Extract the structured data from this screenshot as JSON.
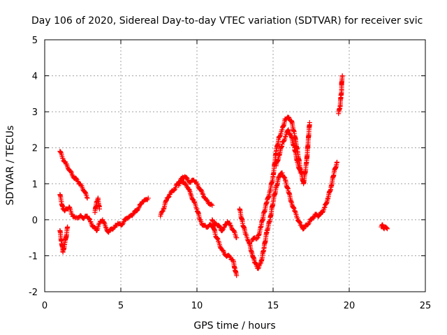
{
  "chart_data": {
    "type": "scatter",
    "title": "Day 106 of 2020, Sidereal Day-to-day VTEC variation (SDTVAR) for receiver svic",
    "xlabel": "GPS time / hours",
    "ylabel": "SDTVAR / TECUs",
    "xlim": [
      0,
      25
    ],
    "ylim": [
      -2,
      5
    ],
    "xticks": [
      0,
      5,
      10,
      15,
      20,
      25
    ],
    "yticks": [
      -2,
      -1,
      0,
      1,
      2,
      3,
      4,
      5
    ],
    "grid": true,
    "marker": "plus",
    "color": "#ff0000",
    "series": [
      {
        "name": "SDTVAR",
        "segments": [
          {
            "x": [
              1.0,
              1.2,
              1.4,
              1.6,
              1.8,
              2.0,
              2.2,
              2.4,
              2.6,
              2.8
            ],
            "y": [
              1.9,
              1.7,
              1.55,
              1.4,
              1.25,
              1.15,
              1.05,
              0.95,
              0.8,
              0.6
            ]
          },
          {
            "x": [
              1.0,
              1.1,
              1.2,
              1.3,
              1.4,
              1.6,
              1.8,
              2.0,
              2.2,
              2.4,
              2.6,
              2.8,
              3.0,
              3.2,
              3.4,
              3.6,
              3.8,
              4.0,
              4.2,
              4.4,
              4.6,
              4.8,
              5.0,
              5.2,
              5.4,
              5.6,
              5.8,
              6.0,
              6.2,
              6.4,
              6.6,
              6.8
            ],
            "y": [
              0.7,
              0.5,
              0.3,
              0.25,
              0.3,
              0.35,
              0.15,
              0.05,
              0.05,
              0.1,
              0.05,
              0.1,
              -0.05,
              -0.2,
              -0.3,
              -0.1,
              0.0,
              -0.2,
              -0.35,
              -0.25,
              -0.2,
              -0.1,
              -0.15,
              -0.05,
              0.05,
              0.1,
              0.15,
              0.25,
              0.35,
              0.5,
              0.55,
              0.6
            ]
          },
          {
            "x": [
              1.0,
              1.1,
              1.2,
              1.3,
              1.4,
              1.5
            ],
            "y": [
              -0.3,
              -0.6,
              -0.9,
              -0.7,
              -0.5,
              -0.2
            ]
          },
          {
            "x": [
              3.3,
              3.4,
              3.5,
              3.6
            ],
            "y": [
              0.2,
              0.5,
              0.6,
              0.3
            ]
          },
          {
            "x": [
              7.6,
              7.8,
              8.0,
              8.2,
              8.4,
              8.6,
              8.8,
              9.0,
              9.2,
              9.4,
              9.6,
              9.8,
              10.0,
              10.2,
              10.4,
              10.6,
              10.8,
              11.0
            ],
            "y": [
              0.1,
              0.3,
              0.55,
              0.7,
              0.8,
              0.9,
              1.05,
              1.15,
              1.2,
              1.1,
              1.05,
              1.1,
              1.0,
              0.85,
              0.7,
              0.55,
              0.45,
              0.4
            ]
          },
          {
            "x": [
              8.8,
              9.0,
              9.2,
              9.4,
              9.6,
              9.8,
              10.0,
              10.2,
              10.4,
              10.6,
              10.8,
              11.0,
              11.2,
              11.4,
              11.6,
              11.8,
              12.0,
              12.2,
              12.4,
              12.6
            ],
            "y": [
              0.95,
              1.1,
              1.0,
              0.9,
              0.7,
              0.5,
              0.3,
              0.0,
              -0.15,
              -0.2,
              -0.15,
              -0.2,
              -0.1,
              -0.15,
              -0.3,
              -0.2,
              -0.05,
              -0.15,
              -0.3,
              -0.5
            ]
          },
          {
            "x": [
              11.0,
              11.2,
              11.4,
              11.6,
              11.8,
              12.0,
              12.2,
              12.4,
              12.5,
              12.6
            ],
            "y": [
              0.0,
              -0.4,
              -0.6,
              -0.8,
              -0.95,
              -1.0,
              -1.05,
              -1.15,
              -1.4,
              -1.55
            ]
          },
          {
            "x": [
              12.8,
              13.0,
              13.2,
              13.4,
              13.6,
              13.8,
              14.0,
              14.2,
              14.4,
              14.6,
              14.8,
              15.0,
              15.2,
              15.4,
              15.6,
              15.8,
              16.0,
              16.2,
              16.4,
              16.6,
              16.8,
              17.0,
              17.2,
              17.4,
              17.6,
              17.8,
              18.0,
              18.2,
              18.4,
              18.6,
              18.8,
              19.0,
              19.2
            ],
            "y": [
              0.3,
              -0.1,
              -0.4,
              -0.6,
              -0.9,
              -1.2,
              -1.35,
              -1.2,
              -0.8,
              -0.3,
              0.0,
              0.5,
              0.9,
              1.2,
              1.3,
              1.1,
              0.8,
              0.5,
              0.25,
              0.05,
              -0.15,
              -0.25,
              -0.15,
              -0.05,
              0.05,
              0.15,
              0.1,
              0.2,
              0.35,
              0.6,
              0.9,
              1.3,
              1.6
            ]
          },
          {
            "x": [
              13.6,
              13.8,
              14.0,
              14.2,
              14.4,
              14.6,
              14.8,
              15.0,
              15.2,
              15.4,
              15.6,
              15.8,
              16.0,
              16.2,
              16.4,
              16.6,
              16.8,
              17.0,
              17.2,
              17.4
            ],
            "y": [
              -0.6,
              -0.5,
              -0.5,
              -0.2,
              0.2,
              0.5,
              0.8,
              1.2,
              1.9,
              2.3,
              2.5,
              2.8,
              2.85,
              2.75,
              2.4,
              1.9,
              1.4,
              1.0,
              1.6,
              2.7
            ]
          },
          {
            "x": [
              15.2,
              15.4,
              15.6,
              15.8,
              16.0,
              16.2,
              16.4,
              16.6,
              16.8
            ],
            "y": [
              1.5,
              1.8,
              2.1,
              2.3,
              2.5,
              2.3,
              2.0,
              1.6,
              1.3
            ]
          },
          {
            "x": [
              19.3,
              19.4,
              19.45,
              19.5,
              19.5,
              19.55
            ],
            "y": [
              2.95,
              3.15,
              3.4,
              3.6,
              3.8,
              4.0
            ]
          },
          {
            "x": [
              22.1,
              22.2,
              22.3,
              22.4,
              22.5
            ],
            "y": [
              -0.2,
              -0.15,
              -0.25,
              -0.2,
              -0.25
            ]
          }
        ]
      }
    ]
  }
}
